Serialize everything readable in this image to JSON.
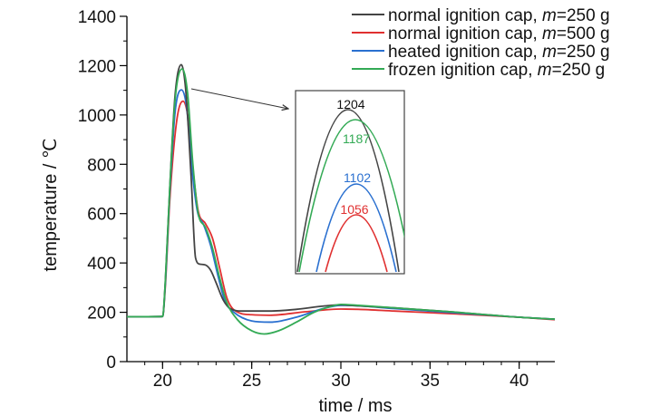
{
  "chart_data": {
    "type": "line",
    "title": "",
    "xlabel": "time / ms",
    "ylabel": "temperature / ℃",
    "xlim": [
      18,
      42
    ],
    "ylim": [
      0,
      1400
    ],
    "xticks": [
      "20",
      "25",
      "30",
      "35",
      "40"
    ],
    "yticks": [
      "0",
      "200",
      "400",
      "600",
      "800",
      "1000",
      "1200",
      "1400"
    ],
    "grid": false,
    "legend_position": "top-right",
    "series": [
      {
        "name_prefix": "normal ignition cap, ",
        "name_param": "m",
        "name_suffix": "=250 g",
        "color": "#444444",
        "peak": 1204,
        "points": [
          [
            18,
            182
          ],
          [
            20,
            183
          ],
          [
            20.15,
            320
          ],
          [
            20.4,
            700
          ],
          [
            20.7,
            1080
          ],
          [
            21.05,
            1204
          ],
          [
            21.3,
            1100
          ],
          [
            21.6,
            750
          ],
          [
            21.85,
            420
          ],
          [
            22.1,
            395
          ],
          [
            22.4,
            392
          ],
          [
            22.7,
            370
          ],
          [
            23.0,
            320
          ],
          [
            23.4,
            250
          ],
          [
            23.8,
            215
          ],
          [
            24.5,
            205
          ],
          [
            26,
            205
          ],
          [
            27.5,
            212
          ],
          [
            29,
            225
          ],
          [
            30,
            230
          ],
          [
            31,
            226
          ],
          [
            33,
            218
          ],
          [
            36,
            203
          ],
          [
            40,
            180
          ],
          [
            42,
            172
          ]
        ]
      },
      {
        "name_prefix": "normal ignition cap, ",
        "name_param": "m",
        "name_suffix": "=500 g",
        "color": "#e03030",
        "peak": 1056,
        "points": [
          [
            18,
            182
          ],
          [
            20,
            183
          ],
          [
            20.15,
            300
          ],
          [
            20.4,
            650
          ],
          [
            20.8,
            980
          ],
          [
            21.15,
            1056
          ],
          [
            21.45,
            980
          ],
          [
            21.75,
            750
          ],
          [
            22.0,
            610
          ],
          [
            22.4,
            560
          ],
          [
            22.8,
            500
          ],
          [
            23.2,
            380
          ],
          [
            23.6,
            260
          ],
          [
            24.0,
            210
          ],
          [
            25,
            190
          ],
          [
            26,
            188
          ],
          [
            28,
            202
          ],
          [
            30,
            213
          ],
          [
            31,
            212
          ],
          [
            33,
            205
          ],
          [
            36,
            195
          ],
          [
            40,
            180
          ],
          [
            42,
            170
          ]
        ]
      },
      {
        "name_prefix": "heated ignition cap, ",
        "name_param": "m",
        "name_suffix": "=250 g",
        "color": "#2a70d0",
        "peak": 1102,
        "points": [
          [
            18,
            182
          ],
          [
            20,
            183
          ],
          [
            20.15,
            310
          ],
          [
            20.4,
            680
          ],
          [
            20.7,
            1010
          ],
          [
            21.05,
            1102
          ],
          [
            21.35,
            1030
          ],
          [
            21.65,
            780
          ],
          [
            21.95,
            610
          ],
          [
            22.3,
            555
          ],
          [
            22.7,
            470
          ],
          [
            23.1,
            350
          ],
          [
            23.5,
            245
          ],
          [
            24.0,
            200
          ],
          [
            25,
            165
          ],
          [
            26,
            160
          ],
          [
            27.5,
            180
          ],
          [
            29,
            215
          ],
          [
            30,
            228
          ],
          [
            31,
            226
          ],
          [
            33,
            215
          ],
          [
            36,
            200
          ],
          [
            40,
            180
          ],
          [
            42,
            172
          ]
        ]
      },
      {
        "name_prefix": "frozen ignition cap, ",
        "name_param": "m",
        "name_suffix": "=250 g",
        "color": "#33aa55",
        "peak": 1187,
        "points": [
          [
            18,
            182
          ],
          [
            20,
            183
          ],
          [
            20.15,
            320
          ],
          [
            20.4,
            700
          ],
          [
            20.7,
            1060
          ],
          [
            21.1,
            1187
          ],
          [
            21.4,
            1090
          ],
          [
            21.7,
            800
          ],
          [
            22.0,
            600
          ],
          [
            22.4,
            545
          ],
          [
            22.8,
            460
          ],
          [
            23.2,
            340
          ],
          [
            23.6,
            240
          ],
          [
            24.2,
            170
          ],
          [
            25,
            125
          ],
          [
            25.7,
            112
          ],
          [
            26.5,
            125
          ],
          [
            27.5,
            160
          ],
          [
            28.5,
            200
          ],
          [
            29.5,
            225
          ],
          [
            30,
            232
          ],
          [
            31,
            228
          ],
          [
            33,
            218
          ],
          [
            36,
            203
          ],
          [
            40,
            180
          ],
          [
            42,
            172
          ]
        ]
      }
    ]
  }
}
